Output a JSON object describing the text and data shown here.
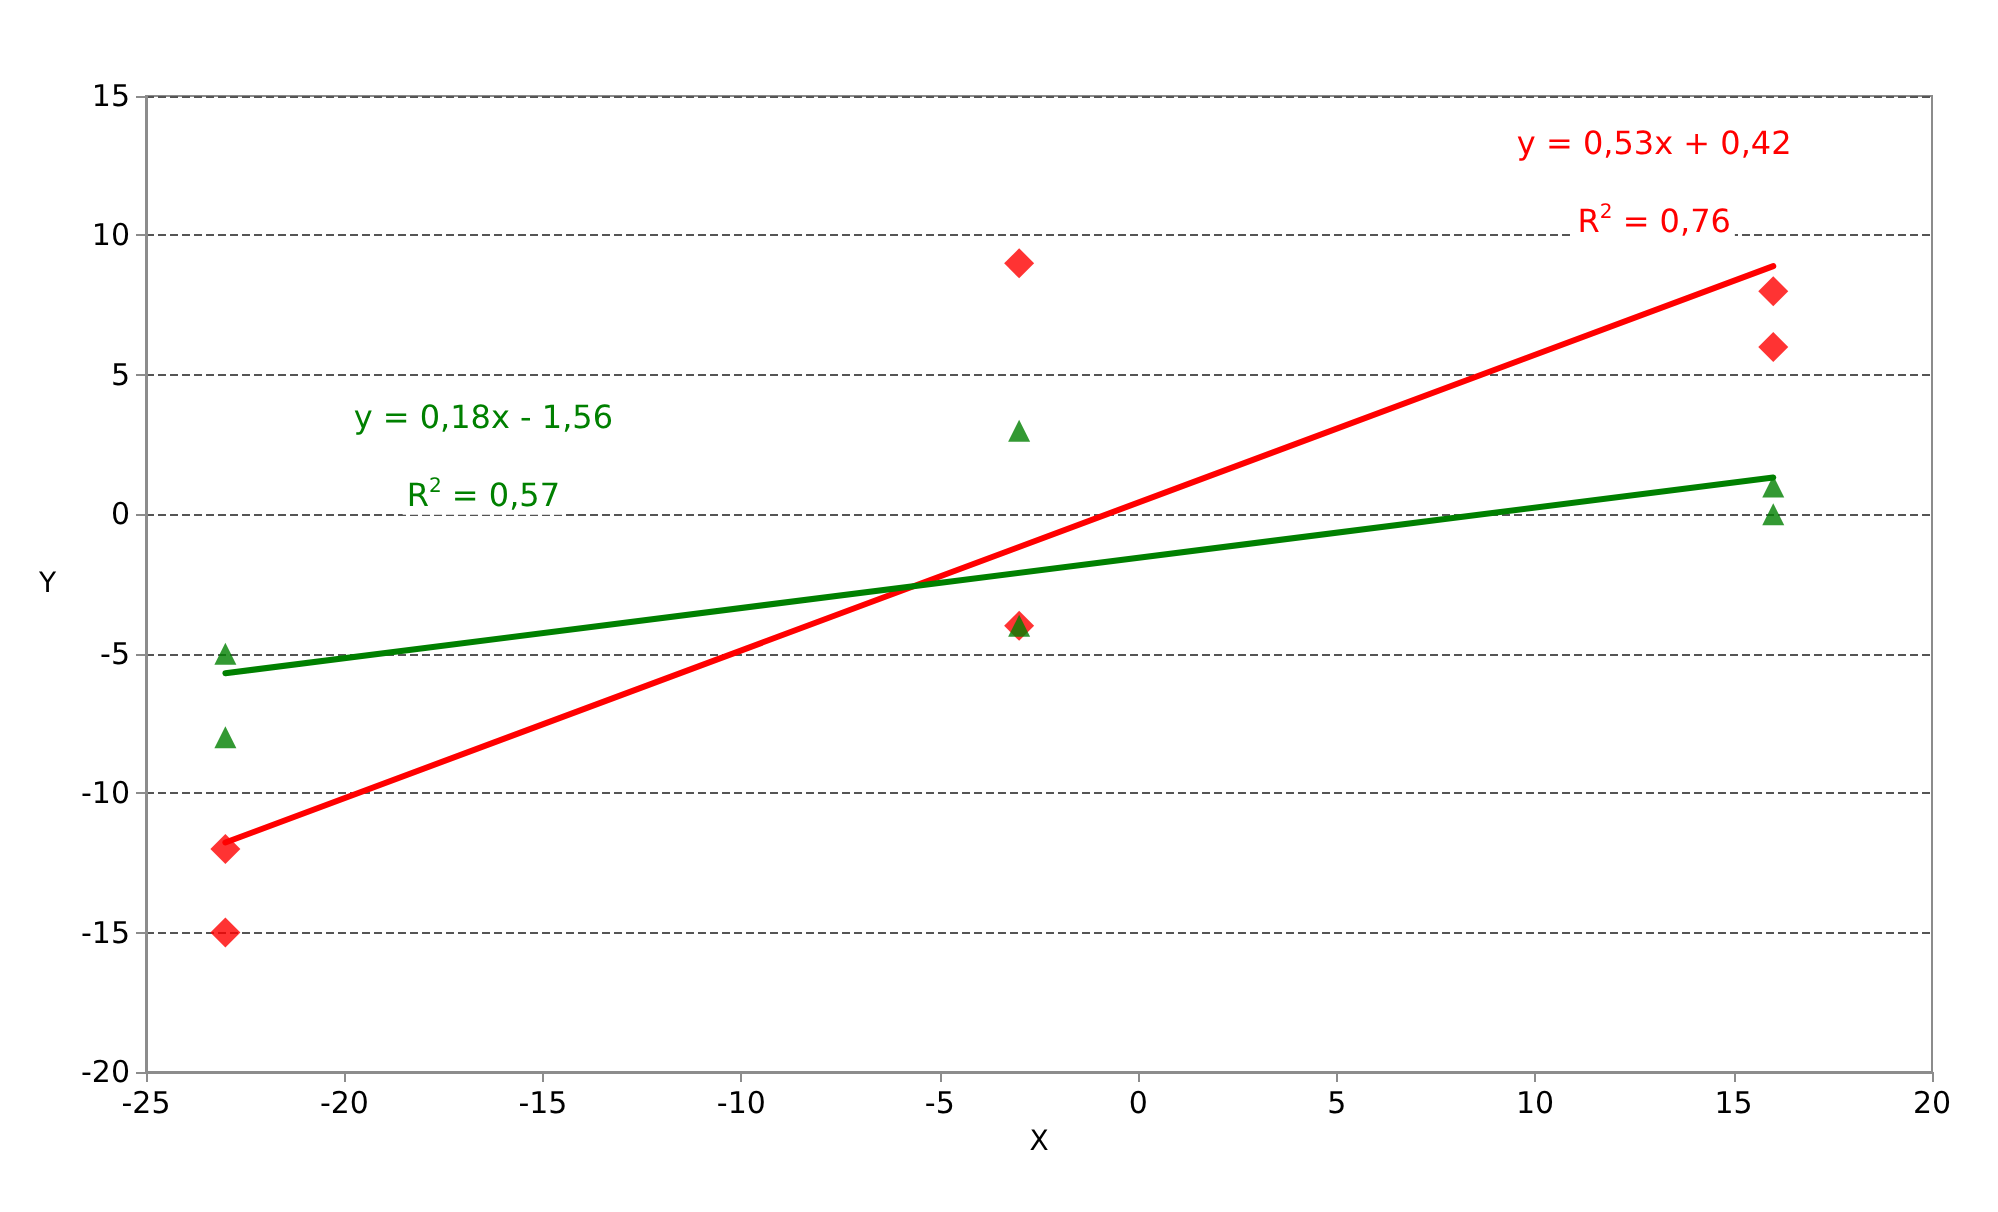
{
  "chart_data": {
    "type": "scatter",
    "xlabel": "X",
    "ylabel": "Y",
    "xlim": [
      -25,
      20
    ],
    "xticks": [
      -25,
      -20,
      -15,
      -10,
      -5,
      0,
      5,
      10,
      15,
      20
    ],
    "ylim": [
      -20,
      15
    ],
    "yticks": [
      -20,
      -15,
      -10,
      -5,
      0,
      5,
      10,
      15
    ],
    "grid": "y",
    "series": [
      {
        "color": "#ff0000",
        "marker": "diamond",
        "x": [
          -23,
          -23,
          -3,
          -3,
          16,
          16
        ],
        "values": [
          -12,
          -15,
          9,
          -4,
          8,
          6
        ]
      },
      {
        "color": "#008000",
        "marker": "triangle",
        "x": [
          -23,
          -23,
          -3,
          -3,
          16,
          16
        ],
        "values": [
          -5,
          -8,
          3,
          -4,
          1,
          0
        ]
      },
      {
        "type": "line",
        "color": "#ff0000",
        "marker": "none",
        "line_style": "solid",
        "x": [
          -23,
          16
        ],
        "values": [
          -11.77,
          8.9
        ]
      },
      {
        "type": "line",
        "color": "#008000",
        "marker": "none",
        "line_style": "solid",
        "x": [
          -23,
          16
        ],
        "values": [
          -5.7,
          1.32
        ]
      }
    ],
    "annotations": [
      "y = 0,53x + 0,42",
      "R$^{2}$ = 0,76",
      "y = 0,18x - 1,56",
      "R$^{2}$ = 0,57"
    ]
  }
}
